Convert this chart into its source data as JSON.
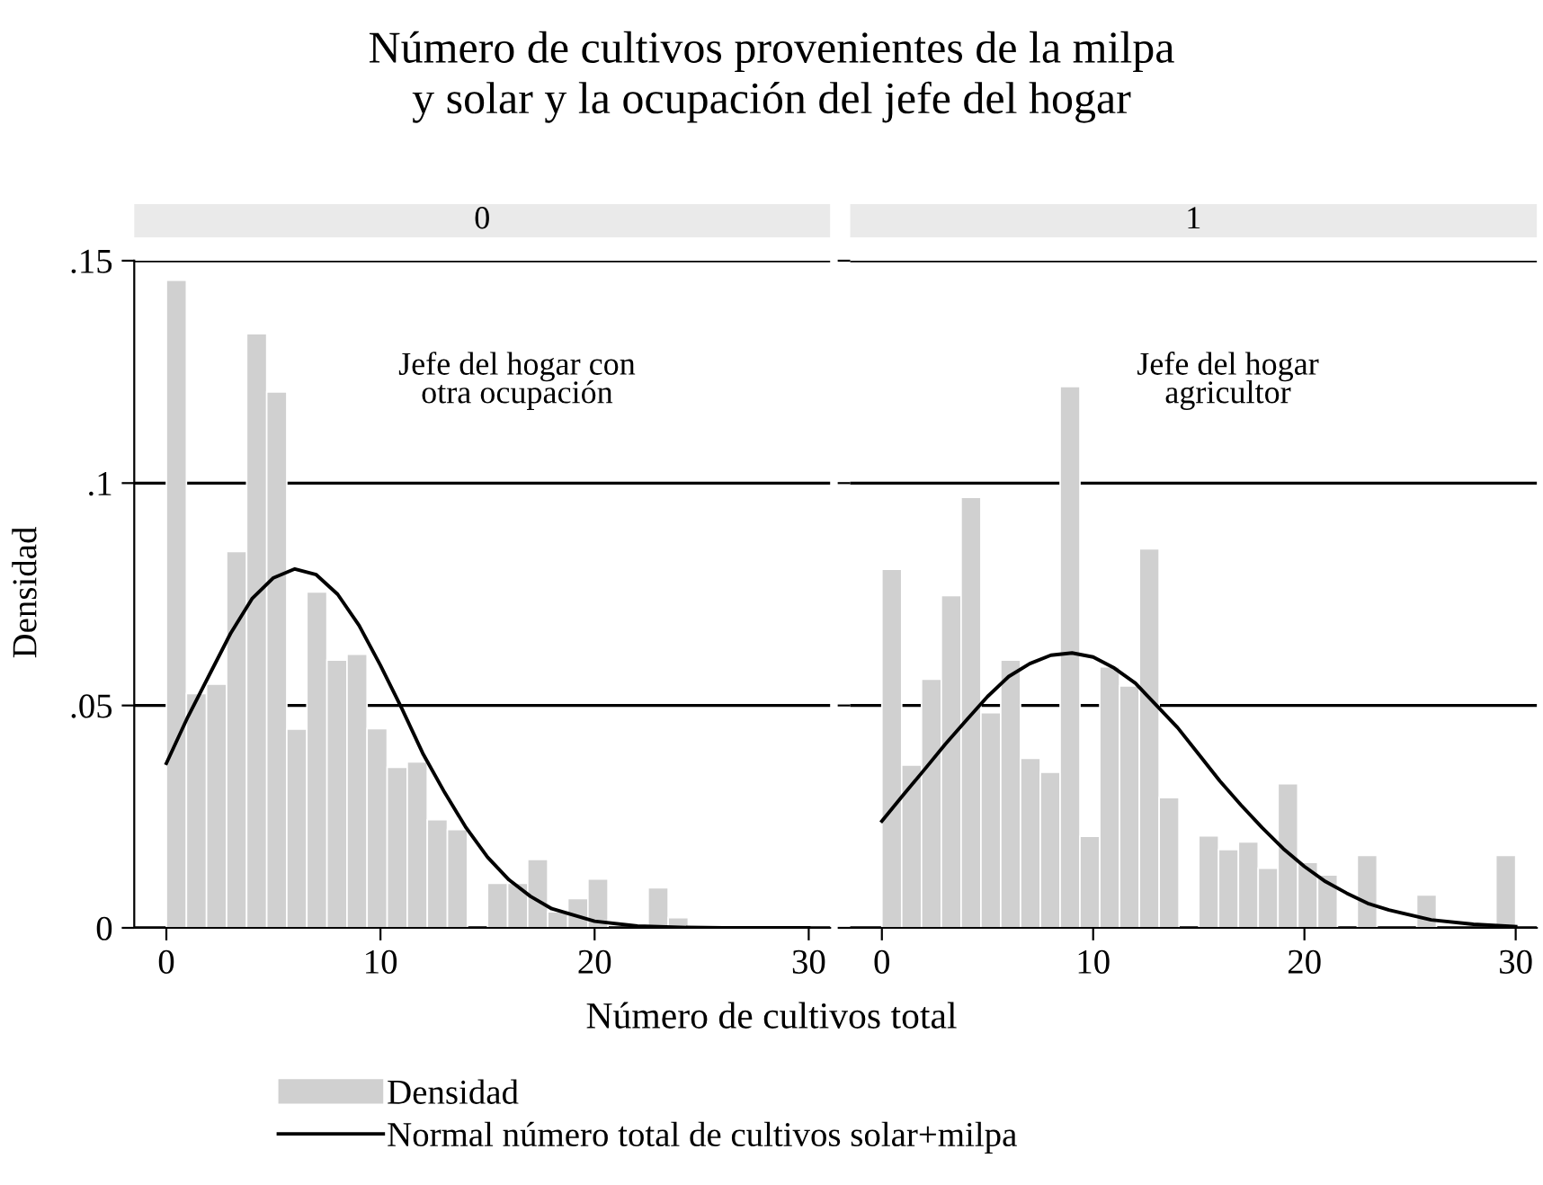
{
  "chart_data": [
    {
      "type": "histogram",
      "title": "Número de cultivos provenientes de la milpa\ny solar y la ocupación del jefe del hogar",
      "subtitle": "0",
      "xlabel": "Número de cultivos total",
      "ylabel": "Densidad",
      "annotations": [
        "Jefe del hogar con\notra ocupación"
      ],
      "bins": [
        0,
        0.9375,
        1.875,
        2.8125,
        3.75,
        4.6875,
        5.625,
        6.5625,
        7.5,
        8.4375,
        9.375,
        10.3125,
        11.25,
        12.1875,
        13.125,
        14.0625,
        15,
        15.9375,
        16.875,
        17.8125,
        18.75,
        19.6875,
        20.625,
        21.5625,
        22.5,
        23.4375,
        24.375,
        25.3125,
        26.25,
        27.1875,
        28.125,
        29.0625,
        30
      ],
      "series": [
        {
          "type": "histogram",
          "name": "Densidad",
          "color": "#d0d0d0",
          "values": [
            0.1456,
            0.0527,
            0.0548,
            0.0846,
            0.1336,
            0.1205,
            0.0447,
            0.0755,
            0.0602,
            0.0615,
            0.0448,
            0.0361,
            0.0373,
            0.0243,
            0.0221,
            0,
            0.01,
            0.01,
            0.0154,
            0.0036,
            0.0066,
            0.011,
            0,
            0,
            0.009,
            0.0023,
            0,
            0,
            0,
            0,
            0,
            0
          ]
        },
        {
          "type": "line",
          "name": "Normal número total de cultivos solar+milpa",
          "color": "#000000",
          "x": [
            0,
            1,
            2,
            3,
            4,
            5,
            6,
            7,
            8,
            9,
            10,
            11,
            12,
            13,
            14,
            15,
            16,
            17,
            18,
            20,
            22,
            24,
            26,
            28,
            30
          ],
          "values": [
            0.037,
            0.0474,
            0.0568,
            0.0662,
            0.074,
            0.0787,
            0.0807,
            0.0794,
            0.075,
            0.068,
            0.059,
            0.0493,
            0.039,
            0.0304,
            0.0225,
            0.0159,
            0.0108,
            0.0071,
            0.0043,
            0.0015,
            0.0004,
            0.0001,
            0,
            0,
            0
          ]
        }
      ],
      "xlim": [
        -1.5,
        31
      ],
      "xticks": [
        0,
        10,
        20,
        30
      ],
      "ylim": [
        0,
        0.15
      ],
      "yticks": [
        {
          "value": 0,
          "label": "0"
        },
        {
          "value": 0.05,
          "label": ".05"
        },
        {
          "value": 0.1,
          "label": ".1"
        },
        {
          "value": 0.15,
          "label": ".15"
        }
      ],
      "grid": "y",
      "legend": "bottom"
    },
    {
      "type": "histogram",
      "subtitle": "1",
      "annotations": [
        "Jefe del hogar\nagricultor"
      ],
      "bins": [
        0,
        0.9375,
        1.875,
        2.8125,
        3.75,
        4.6875,
        5.625,
        6.5625,
        7.5,
        8.4375,
        9.375,
        10.3125,
        11.25,
        12.1875,
        13.125,
        14.0625,
        15,
        15.9375,
        16.875,
        17.8125,
        18.75,
        19.6875,
        20.625,
        21.5625,
        22.5,
        23.4375,
        24.375,
        25.3125,
        26.25,
        27.1875,
        28.125,
        29.0625,
        30
      ],
      "series": [
        {
          "type": "histogram",
          "color": "#d0d0d0",
          "values": [
            0.0806,
            0.0366,
            0.0559,
            0.0747,
            0.0968,
            0.0484,
            0.0602,
            0.0381,
            0.035,
            0.1217,
            0.0206,
            0.0587,
            0.0544,
            0.0852,
            0.0293,
            0,
            0.0207,
            0.0176,
            0.0193,
            0.0134,
            0.0324,
            0.0147,
            0.0119,
            0,
            0.0163,
            0,
            0,
            0.0074,
            0,
            0,
            0,
            0.0163
          ]
        },
        {
          "type": "line",
          "color": "#000000",
          "x": [
            0,
            1,
            2,
            3,
            4,
            5,
            6,
            7,
            8,
            9,
            10,
            11,
            12,
            13,
            14,
            15,
            16,
            17,
            18,
            19,
            20,
            21,
            22,
            23,
            24,
            26,
            28,
            30
          ],
          "values": [
            0.024,
            0.0298,
            0.0355,
            0.0413,
            0.0467,
            0.052,
            0.0565,
            0.0594,
            0.0613,
            0.0618,
            0.0609,
            0.0584,
            0.055,
            0.05,
            0.045,
            0.039,
            0.033,
            0.0276,
            0.0225,
            0.0178,
            0.0138,
            0.0104,
            0.0078,
            0.0055,
            0.004,
            0.0018,
            0.0008,
            0.0003
          ]
        }
      ],
      "xlim": [
        -1.5,
        31
      ],
      "xticks": [
        0,
        10,
        20,
        30
      ],
      "ylim": [
        0,
        0.15
      ],
      "yticks": [
        {
          "value": 0,
          "label": null
        },
        {
          "value": 0.05,
          "label": null
        },
        {
          "value": 0.1,
          "label": null
        },
        {
          "value": 0.15,
          "label": null
        }
      ],
      "grid": "y",
      "tick_labels": "x"
    }
  ]
}
